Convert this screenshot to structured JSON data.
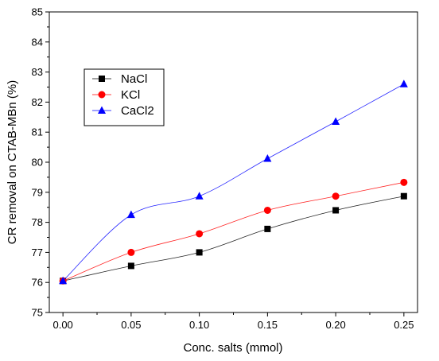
{
  "chart_data": {
    "type": "line",
    "x": [
      0.0,
      0.05,
      0.1,
      0.15,
      0.2,
      0.25
    ],
    "x_tick_labels": [
      "0.00",
      "0.05",
      "0.10",
      "0.15",
      "0.20",
      "0.25"
    ],
    "y_tick_labels": [
      "75",
      "76",
      "77",
      "78",
      "79",
      "80",
      "81",
      "82",
      "83",
      "84",
      "85"
    ],
    "xlabel": "Conc. salts (mmol)",
    "ylabel": "CR removal on CTAB-MBn (%)",
    "xlim": [
      -0.01,
      0.26
    ],
    "ylim": [
      75,
      85
    ],
    "grid": false,
    "legend_position": "upper-left",
    "series": [
      {
        "name": "NaCl",
        "marker": "square",
        "color": "#000000",
        "values": [
          76.05,
          76.55,
          77.0,
          77.78,
          78.4,
          78.87
        ]
      },
      {
        "name": "KCl",
        "marker": "circle",
        "color": "#ff0000",
        "values": [
          76.05,
          77.0,
          77.62,
          78.4,
          78.87,
          79.33
        ]
      },
      {
        "name": "CaCl2",
        "marker": "triangle",
        "color": "#0000ff",
        "values": [
          76.05,
          78.25,
          78.87,
          80.12,
          81.35,
          82.6
        ]
      }
    ]
  }
}
